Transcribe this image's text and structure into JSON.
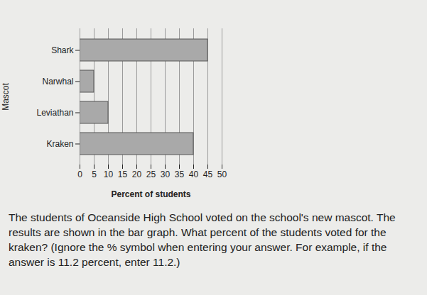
{
  "chart_data": {
    "type": "bar",
    "orientation": "horizontal",
    "categories": [
      "Shark",
      "Narwhal",
      "Leviathan",
      "Kraken"
    ],
    "values": [
      45,
      5,
      10,
      40
    ],
    "color": "#a9a9a9",
    "xlabel": "Percent of students",
    "ylabel": "Mascot",
    "xlim": [
      0,
      50
    ],
    "xticks": [
      0,
      5,
      10,
      15,
      20,
      25,
      30,
      35,
      40,
      45,
      50
    ],
    "grid": true,
    "annotations": [
      "The students of Oceanside High School voted on the school's new mascot. The results are shown in the bar graph. What percent of the students voted for the kraken? (Ignore the % symbol when entering your answer. For example, if the answer is 11.2 percent, enter 11.2.)"
    ]
  }
}
